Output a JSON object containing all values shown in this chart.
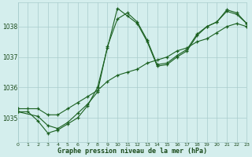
{
  "title": "Graphe pression niveau de la mer (hPa)",
  "bg_color": "#d4eeed",
  "grid_color": "#a8cccc",
  "line_color": "#1a6020",
  "text_color": "#1a4a1a",
  "xlim": [
    0,
    23
  ],
  "ylim": [
    1034.2,
    1038.8
  ],
  "yticks": [
    1035,
    1036,
    1037,
    1038
  ],
  "xticks": [
    0,
    1,
    2,
    3,
    4,
    5,
    6,
    7,
    8,
    9,
    10,
    11,
    12,
    13,
    14,
    15,
    16,
    17,
    18,
    19,
    20,
    21,
    22,
    23
  ],
  "series1_x": [
    0,
    1,
    2,
    3,
    4,
    5,
    6,
    7,
    8,
    9,
    10,
    11,
    12,
    13,
    14,
    15,
    16,
    17,
    18,
    19,
    20,
    21,
    22,
    23
  ],
  "series1_y": [
    1035.3,
    1035.3,
    1035.3,
    1035.1,
    1035.1,
    1035.3,
    1035.5,
    1035.7,
    1035.9,
    1036.2,
    1036.4,
    1036.5,
    1036.6,
    1036.8,
    1036.9,
    1037.0,
    1037.2,
    1037.3,
    1037.5,
    1037.6,
    1037.8,
    1038.0,
    1038.1,
    1038.0
  ],
  "series2_x": [
    0,
    1,
    2,
    3,
    4,
    5,
    6,
    7,
    8,
    9,
    10,
    11,
    12,
    13,
    14,
    15,
    16,
    17,
    18,
    19,
    20,
    21,
    22,
    23
  ],
  "series2_y": [
    1035.2,
    1035.2,
    1034.9,
    1034.5,
    1034.6,
    1034.8,
    1035.0,
    1035.4,
    1036.0,
    1037.3,
    1038.6,
    1038.35,
    1038.1,
    1037.5,
    1036.7,
    1036.75,
    1037.0,
    1037.2,
    1037.7,
    1038.0,
    1038.15,
    1038.5,
    1038.4,
    1038.1
  ],
  "series3_x": [
    0,
    2,
    3,
    4,
    5,
    6,
    7,
    8,
    9,
    10,
    11,
    12,
    13,
    14,
    15,
    16,
    17,
    18,
    19,
    20,
    21,
    22,
    23
  ],
  "series3_y": [
    1035.2,
    1035.05,
    1034.75,
    1034.65,
    1034.85,
    1035.15,
    1035.45,
    1035.85,
    1037.35,
    1038.25,
    1038.45,
    1038.15,
    1037.55,
    1036.75,
    1036.8,
    1037.05,
    1037.25,
    1037.75,
    1038.0,
    1038.15,
    1038.55,
    1038.45,
    1038.1
  ]
}
